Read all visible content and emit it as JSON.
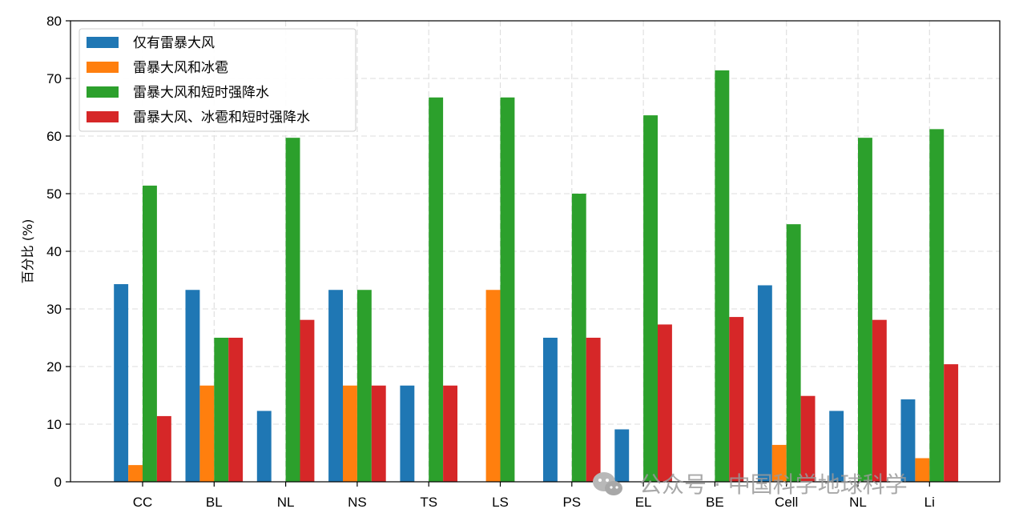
{
  "chart_data": {
    "type": "bar",
    "title": "",
    "xlabel": "",
    "ylabel": "百分比 (%)",
    "ylim": [
      0,
      80
    ],
    "yticks": [
      0,
      10,
      20,
      30,
      40,
      50,
      60,
      70,
      80
    ],
    "grid": true,
    "legend_position": "top-left",
    "categories": [
      "CC",
      "BL",
      "NL",
      "NS",
      "TS",
      "LS",
      "PS",
      "EL",
      "BE",
      "Cell",
      "NL",
      "Li"
    ],
    "series": [
      {
        "name": "仅有雷暴大风",
        "color": "#1f77b4",
        "values": [
          34.3,
          33.3,
          12.3,
          33.3,
          16.7,
          0,
          25.0,
          9.1,
          0,
          34.1,
          12.3,
          14.3
        ]
      },
      {
        "name": "雷暴大风和冰雹",
        "color": "#ff7f0e",
        "values": [
          2.9,
          16.7,
          0,
          16.7,
          0,
          33.3,
          0,
          0,
          0,
          6.4,
          0,
          4.1
        ]
      },
      {
        "name": "雷暴大风和短时强降水",
        "color": "#2ca02c",
        "values": [
          51.4,
          25.0,
          59.7,
          33.3,
          66.7,
          66.7,
          50.0,
          63.6,
          71.4,
          44.7,
          59.7,
          61.2
        ]
      },
      {
        "name": "雷暴大风、冰雹和短时强降水",
        "color": "#d62728",
        "values": [
          11.4,
          25.0,
          28.1,
          16.7,
          16.7,
          0,
          25.0,
          27.3,
          28.6,
          14.9,
          28.1,
          20.4
        ]
      }
    ]
  },
  "watermark": {
    "text": "公众号 · 中国科学地球科学",
    "icon": "wechat-icon"
  }
}
